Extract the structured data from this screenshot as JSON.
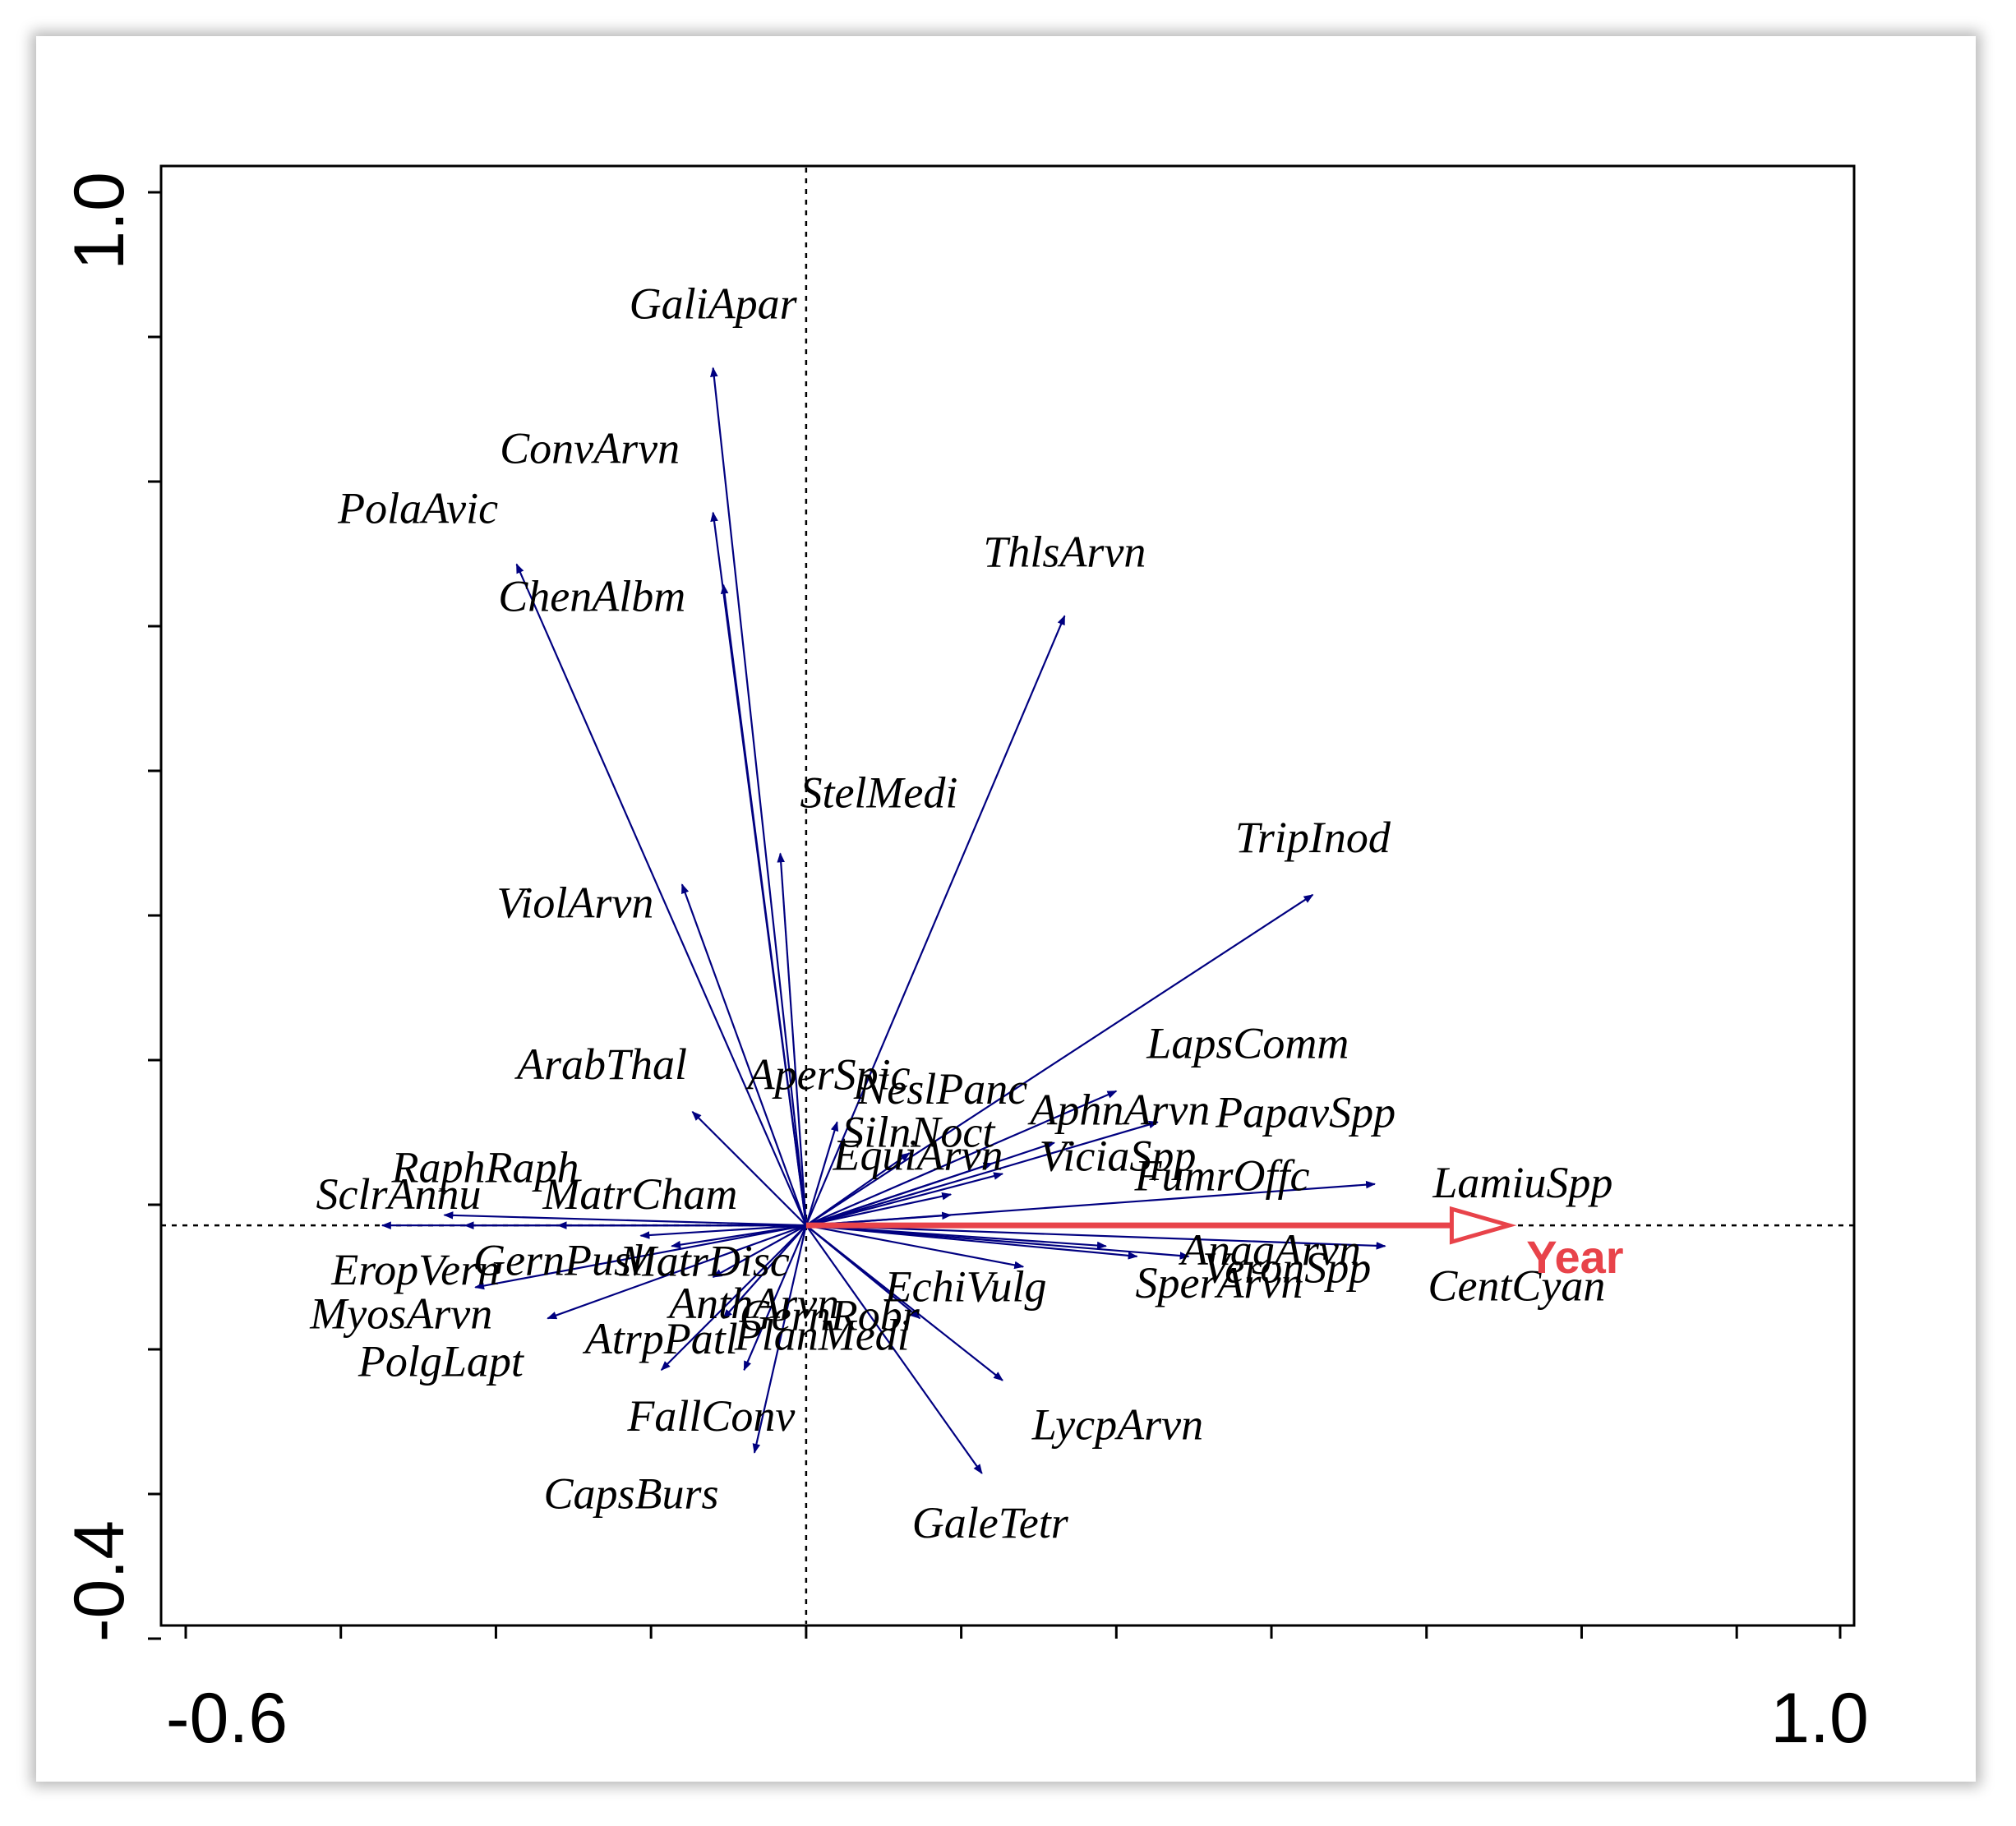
{
  "chart_data": {
    "type": "biplot",
    "title": "",
    "xlabel": "",
    "ylabel": "",
    "xlim": [
      -0.6,
      1.0
    ],
    "ylim": [
      -0.4,
      1.0
    ],
    "x_tick_labels": [
      "-0.6",
      "1.0"
    ],
    "y_tick_labels": [
      "1.0",
      "-0.4"
    ],
    "x_minor_ticks": [
      -0.6,
      -0.45,
      -0.3,
      -0.15,
      0.0,
      0.15,
      0.3,
      0.45,
      0.6,
      0.75,
      0.9,
      1.0
    ],
    "y_minor_ticks": [
      -0.4,
      -0.26,
      -0.12,
      0.02,
      0.16,
      0.3,
      0.44,
      0.58,
      0.72,
      0.86,
      1.0
    ],
    "reference_lines": {
      "x": 0.0,
      "y": 0.0,
      "style": "dotted"
    },
    "arrow_color": "#000080",
    "env_color": "#e8434a",
    "species": [
      {
        "name": "GaliApar",
        "x": -0.09,
        "y": 0.83
      },
      {
        "name": "ConvArvn",
        "x": -0.09,
        "y": 0.69
      },
      {
        "name": "PolaAvic",
        "x": -0.28,
        "y": 0.64
      },
      {
        "name": "ChenAlbm",
        "x": -0.08,
        "y": 0.62
      },
      {
        "name": "ThlsArvn",
        "x": 0.25,
        "y": 0.59
      },
      {
        "name": "StelMedi",
        "x": -0.025,
        "y": 0.36
      },
      {
        "name": "ViolArvn",
        "x": -0.12,
        "y": 0.33
      },
      {
        "name": "TripInod",
        "x": 0.49,
        "y": 0.32
      },
      {
        "name": "LapsComm",
        "x": 0.3,
        "y": 0.13
      },
      {
        "name": "NeslPanc",
        "x": 0.1,
        "y": 0.07
      },
      {
        "name": "ArabThal",
        "x": -0.11,
        "y": 0.11
      },
      {
        "name": "AperSpic",
        "x": 0.03,
        "y": 0.1
      },
      {
        "name": "SilnNoct",
        "x": 0.18,
        "y": 0.06
      },
      {
        "name": "AphnArvn",
        "x": 0.24,
        "y": 0.08
      },
      {
        "name": "PapavSpp",
        "x": 0.34,
        "y": 0.1
      },
      {
        "name": "ViciaSpp",
        "x": 0.19,
        "y": 0.05
      },
      {
        "name": "EquiArvn",
        "x": 0.14,
        "y": 0.03
      },
      {
        "name": "LamiuSpp",
        "x": 0.55,
        "y": 0.04
      },
      {
        "name": "FumrOffc",
        "x": 0.14,
        "y": 0.01
      },
      {
        "name": "SclrAnnu",
        "x": -0.41,
        "y": 0.0
      },
      {
        "name": "RaphRaph",
        "x": -0.35,
        "y": 0.01
      },
      {
        "name": "MatrCham",
        "x": -0.24,
        "y": 0.0
      },
      {
        "name": "GernPusl",
        "x": -0.16,
        "y": -0.01
      },
      {
        "name": "MatrDisc",
        "x": -0.13,
        "y": -0.02
      },
      {
        "name": "EropVern",
        "x": -0.33,
        "y": 0.0
      },
      {
        "name": "MyosArvn",
        "x": -0.32,
        "y": -0.06
      },
      {
        "name": "PolgLapt",
        "x": -0.25,
        "y": -0.09
      },
      {
        "name": "AnthArvn",
        "x": -0.09,
        "y": -0.05
      },
      {
        "name": "AtrpPatl",
        "x": -0.14,
        "y": -0.14
      },
      {
        "name": "PlanMedi",
        "x": -0.08,
        "y": -0.09
      },
      {
        "name": "FallConv",
        "x": -0.06,
        "y": -0.14
      },
      {
        "name": "CapsBurs",
        "x": -0.05,
        "y": -0.22
      },
      {
        "name": "EchiVulg",
        "x": 0.21,
        "y": -0.04
      },
      {
        "name": "SperArvn",
        "x": 0.32,
        "y": -0.03
      },
      {
        "name": "AnagArvn",
        "x": 0.37,
        "y": -0.03
      },
      {
        "name": "VeronSpp",
        "x": 0.29,
        "y": -0.02
      },
      {
        "name": "CentCyan",
        "x": 0.56,
        "y": -0.02
      },
      {
        "name": "GernRobr",
        "x": 0.11,
        "y": -0.09
      },
      {
        "name": "LycpArvn",
        "x": 0.19,
        "y": -0.15
      },
      {
        "name": "GaleTetr",
        "x": 0.17,
        "y": -0.24
      }
    ],
    "environmental": [
      {
        "name": "Year",
        "x": 0.68,
        "y": 0.0
      }
    ]
  }
}
